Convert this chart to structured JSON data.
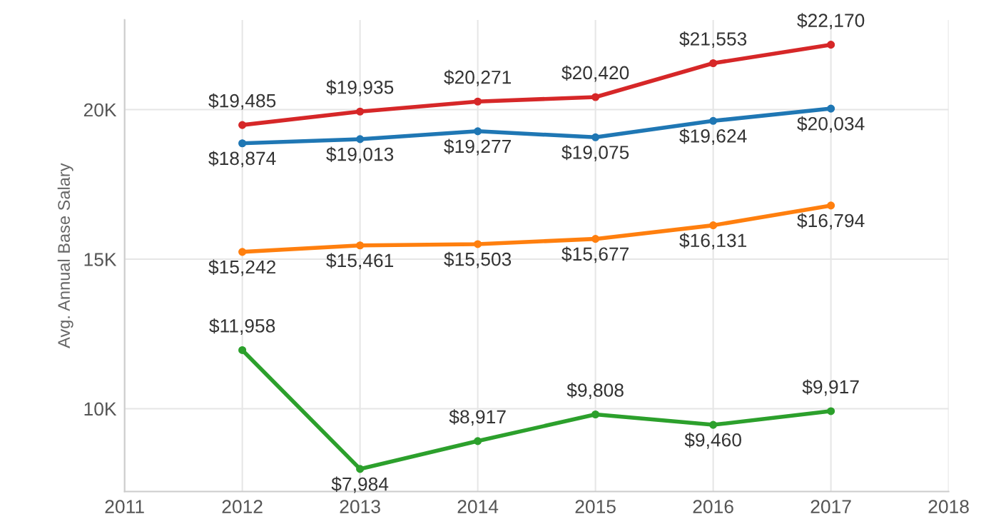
{
  "chart_data": {
    "type": "line",
    "ylabel": "Avg. Annual Base Salary",
    "x": [
      2012,
      2013,
      2014,
      2015,
      2016,
      2017
    ],
    "xlim": [
      2011,
      2018
    ],
    "xticks": [
      2011,
      2012,
      2013,
      2014,
      2015,
      2016,
      2017,
      2018
    ],
    "ylim": [
      7230,
      23000
    ],
    "yticks": [
      {
        "value": 10000,
        "label": "10K"
      },
      {
        "value": 15000,
        "label": "15K"
      },
      {
        "value": 20000,
        "label": "20K"
      }
    ],
    "grid": true,
    "marker": "circle",
    "line_style": "solid",
    "series": [
      {
        "color": "#d62728",
        "values": [
          19485,
          19935,
          20271,
          20420,
          21553,
          22170
        ],
        "value_labels": [
          "$19,485",
          "$19,935",
          "$20,271",
          "$20,420",
          "$21,553",
          "$22,170"
        ]
      },
      {
        "color": "#1f77b4",
        "values": [
          18874,
          19013,
          19277,
          19075,
          19624,
          20034
        ],
        "value_labels": [
          "$18,874",
          "$19,013",
          "$19,277",
          "$19,075",
          "$19,624",
          "$20,034"
        ]
      },
      {
        "color": "#ff7f0e",
        "values": [
          15242,
          15461,
          15503,
          15677,
          16131,
          16794
        ],
        "value_labels": [
          "$15,242",
          "$15,461",
          "$15,503",
          "$15,677",
          "$16,131",
          "$16,794"
        ]
      },
      {
        "color": "#2ca02c",
        "values": [
          11958,
          7984,
          8917,
          9808,
          9460,
          9917
        ],
        "value_labels": [
          "$11,958",
          "$7,984",
          "$8,917",
          "$9,808",
          "$9,460",
          "$9,917"
        ]
      }
    ]
  }
}
